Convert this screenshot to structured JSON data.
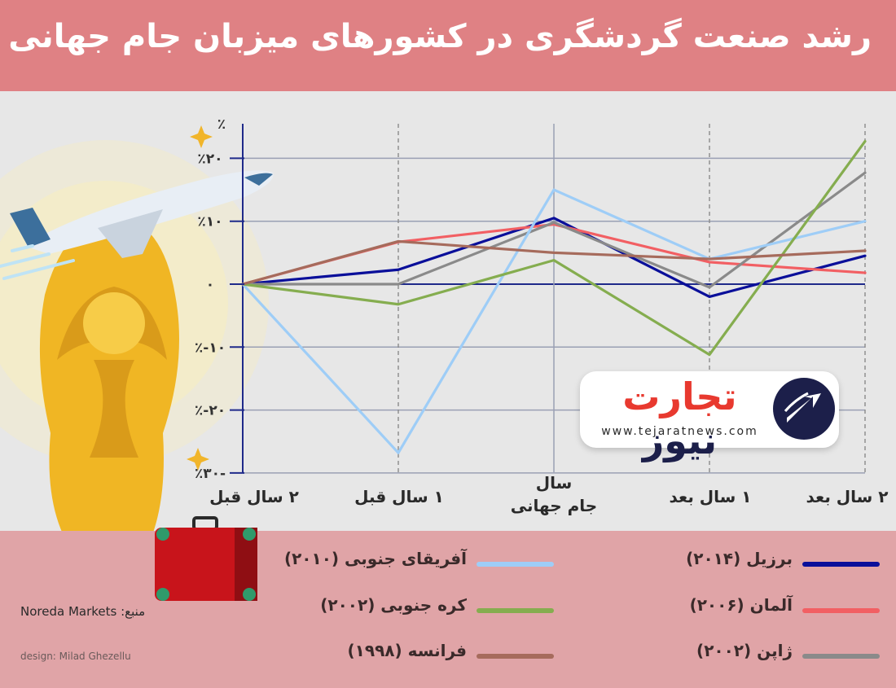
{
  "title": "رشد صنعت گردشگری در کشورهای میزبان جام جهانی",
  "colors": {
    "header": "#df8184",
    "legend_band": "#e0a4a7",
    "plot_bg": "#e7e7e7"
  },
  "chart_data": {
    "type": "line",
    "categories": [
      "۲ سال قبل",
      "۱ سال قبل",
      "سال جام جهانی",
      "۱ سال بعد",
      "۲ سال بعد"
    ],
    "category_lines": [
      [
        "۲ سال قبل"
      ],
      [
        "۱ سال قبل"
      ],
      [
        "سال",
        "جام جهانی"
      ],
      [
        "۱ سال بعد"
      ],
      [
        "۲ سال بعد"
      ]
    ],
    "y_ticks": [
      {
        "v": 20,
        "label": "٪۲۰"
      },
      {
        "v": 10,
        "label": "٪۱۰"
      },
      {
        "v": 0,
        "label": "۰"
      },
      {
        "v": -10,
        "label": "٪-۱۰"
      },
      {
        "v": -20,
        "label": "٪-۲۰"
      },
      {
        "v": -30,
        "label": "٪۳۰-"
      }
    ],
    "y_unit": "٪",
    "ylim": [
      -30,
      25
    ],
    "grid": true,
    "series": [
      {
        "name": "برزیل (۲۰۱۴)",
        "color": "#0a0f9a",
        "values": [
          0,
          2.3,
          10.5,
          -2,
          4.5
        ]
      },
      {
        "name": "آلمان (۲۰۰۶)",
        "color": "#f25f63",
        "values": [
          0,
          6.7,
          9.5,
          3.5,
          1.8
        ]
      },
      {
        "name": "ژاپن (۲۰۰۲)",
        "color": "#8a8a8a",
        "values": [
          0,
          0,
          9.8,
          -0.5,
          17.7
        ]
      },
      {
        "name": "آفریقای جنوبی (۲۰۱۰)",
        "color": "#9ecdf7",
        "values": [
          0,
          -26.8,
          15,
          4,
          10
        ]
      },
      {
        "name": "کره جنوبی (۲۰۰۲)",
        "color": "#85ad4f",
        "values": [
          0,
          -3.2,
          3.8,
          -11.2,
          22.7
        ]
      },
      {
        "name": "فرانسه (۱۹۹۸)",
        "color": "#a66b5c",
        "values": [
          0,
          6.8,
          5,
          4,
          5.3
        ]
      }
    ]
  },
  "source": "منبع: Noreda Markets",
  "designer": "design: Milad Ghezellu",
  "logo": {
    "brand_accent": "تجارت",
    "brand_rest": "نیوز",
    "url": "www.tejaratnews.com"
  }
}
